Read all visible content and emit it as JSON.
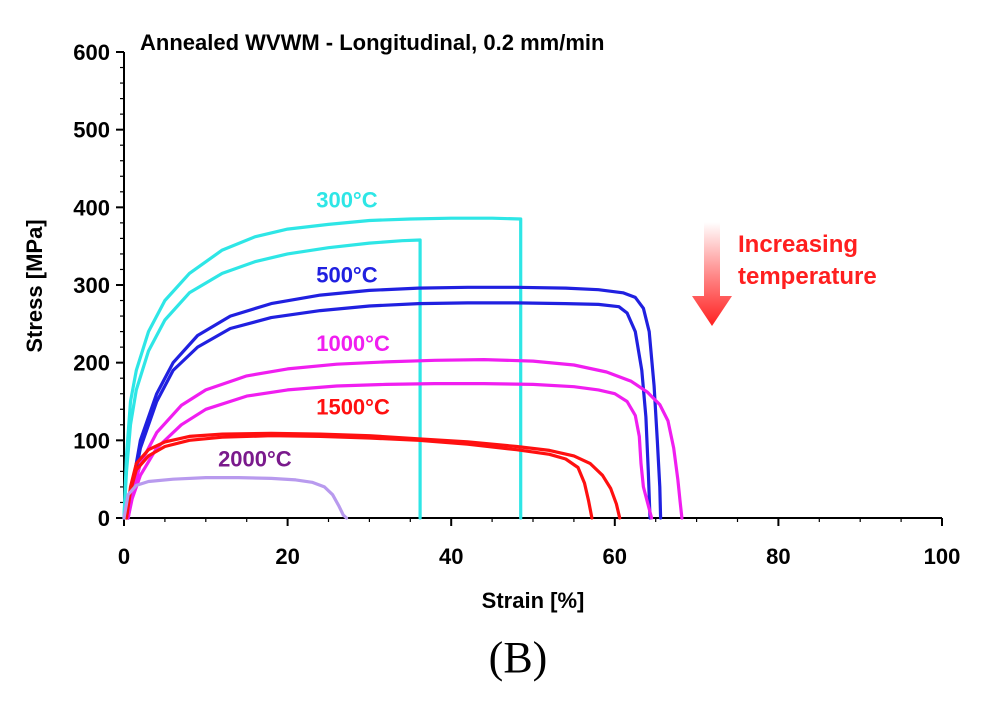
{
  "chart_data": {
    "type": "line",
    "title": "Annealed WVWM - Longitudinal, 0.2 mm/min",
    "xlabel": "Strain [%]",
    "ylabel": "Stress [MPa]",
    "xlim": [
      0,
      100
    ],
    "ylim": [
      0,
      600
    ],
    "xticks": [
      0,
      20,
      40,
      60,
      80,
      100
    ],
    "xtick_labels": [
      "0",
      "20",
      "40",
      "60",
      "80",
      "100"
    ],
    "yticks": [
      0,
      100,
      200,
      300,
      400,
      500,
      600
    ],
    "ytick_labels": [
      "0",
      "100",
      "200",
      "300",
      "400",
      "500",
      "600"
    ],
    "grid": false,
    "annotation": {
      "text_line1": "Increasing",
      "text_line2": "temperature",
      "color": "#ff1f1f"
    },
    "panel_label": "(B)",
    "series": [
      {
        "label_ref": 0,
        "color": "#2ee6e6",
        "points": [
          [
            0,
            0
          ],
          [
            0.3,
            80
          ],
          [
            0.8,
            150
          ],
          [
            1.5,
            190
          ],
          [
            3,
            240
          ],
          [
            5,
            280
          ],
          [
            8,
            315
          ],
          [
            12,
            345
          ],
          [
            16,
            362
          ],
          [
            20,
            372
          ],
          [
            25,
            378
          ],
          [
            30,
            383
          ],
          [
            35,
            385
          ],
          [
            40,
            386
          ],
          [
            45,
            386
          ],
          [
            48.5,
            385
          ],
          [
            48.5,
            0
          ]
        ]
      },
      {
        "label_ref": 0,
        "color": "#2ee6e6",
        "points": [
          [
            0,
            0
          ],
          [
            0.3,
            60
          ],
          [
            0.8,
            120
          ],
          [
            1.5,
            165
          ],
          [
            3,
            215
          ],
          [
            5,
            255
          ],
          [
            8,
            290
          ],
          [
            12,
            315
          ],
          [
            16,
            330
          ],
          [
            20,
            340
          ],
          [
            25,
            348
          ],
          [
            30,
            354
          ],
          [
            34,
            357
          ],
          [
            36.2,
            358
          ],
          [
            36.2,
            0
          ]
        ]
      },
      {
        "label_ref": 1,
        "color": "#2020e0",
        "points": [
          [
            0.5,
            0
          ],
          [
            1,
            40
          ],
          [
            2,
            100
          ],
          [
            4,
            160
          ],
          [
            6,
            200
          ],
          [
            9,
            235
          ],
          [
            13,
            260
          ],
          [
            18,
            276
          ],
          [
            24,
            287
          ],
          [
            30,
            293
          ],
          [
            36,
            296
          ],
          [
            42,
            297
          ],
          [
            48,
            297
          ],
          [
            54,
            296
          ],
          [
            58,
            294
          ],
          [
            61,
            290
          ],
          [
            62.5,
            284
          ],
          [
            63.5,
            270
          ],
          [
            64.2,
            240
          ],
          [
            64.8,
            170
          ],
          [
            65.2,
            100
          ],
          [
            65.5,
            40
          ],
          [
            65.6,
            0
          ]
        ]
      },
      {
        "label_ref": 1,
        "color": "#2020e0",
        "points": [
          [
            0.5,
            0
          ],
          [
            1,
            35
          ],
          [
            2,
            90
          ],
          [
            4,
            150
          ],
          [
            6,
            190
          ],
          [
            9,
            220
          ],
          [
            13,
            244
          ],
          [
            18,
            258
          ],
          [
            24,
            267
          ],
          [
            30,
            273
          ],
          [
            36,
            276
          ],
          [
            42,
            277
          ],
          [
            48,
            277
          ],
          [
            54,
            276
          ],
          [
            58,
            275
          ],
          [
            60.5,
            272
          ],
          [
            61.5,
            264
          ],
          [
            62.5,
            240
          ],
          [
            63.3,
            190
          ],
          [
            63.8,
            130
          ],
          [
            64.1,
            60
          ],
          [
            64.3,
            0
          ]
        ]
      },
      {
        "label_ref": 2,
        "color": "#f01ef0",
        "points": [
          [
            0.5,
            0
          ],
          [
            1,
            30
          ],
          [
            2,
            70
          ],
          [
            4,
            110
          ],
          [
            7,
            145
          ],
          [
            10,
            165
          ],
          [
            15,
            183
          ],
          [
            20,
            192
          ],
          [
            26,
            198
          ],
          [
            32,
            201
          ],
          [
            38,
            203
          ],
          [
            44,
            204
          ],
          [
            50,
            202
          ],
          [
            55,
            197
          ],
          [
            59,
            188
          ],
          [
            62,
            176
          ],
          [
            64,
            162
          ],
          [
            65.5,
            146
          ],
          [
            66.5,
            125
          ],
          [
            67.2,
            90
          ],
          [
            67.7,
            50
          ],
          [
            68,
            20
          ],
          [
            68.2,
            0
          ]
        ]
      },
      {
        "label_ref": 2,
        "color": "#f01ef0",
        "points": [
          [
            0.5,
            0
          ],
          [
            1,
            25
          ],
          [
            2,
            55
          ],
          [
            4,
            90
          ],
          [
            7,
            120
          ],
          [
            10,
            140
          ],
          [
            15,
            157
          ],
          [
            20,
            165
          ],
          [
            26,
            170
          ],
          [
            32,
            172
          ],
          [
            38,
            173
          ],
          [
            44,
            173
          ],
          [
            50,
            172
          ],
          [
            55,
            169
          ],
          [
            58,
            165
          ],
          [
            60,
            160
          ],
          [
            61.5,
            150
          ],
          [
            62.5,
            132
          ],
          [
            63,
            105
          ],
          [
            63.2,
            70
          ],
          [
            63.5,
            40
          ],
          [
            64,
            20
          ],
          [
            64.5,
            0
          ]
        ]
      },
      {
        "label_ref": 3,
        "color": "#ff1010",
        "points": [
          [
            0.3,
            0
          ],
          [
            0.8,
            40
          ],
          [
            1.5,
            70
          ],
          [
            3,
            88
          ],
          [
            5,
            98
          ],
          [
            8,
            105
          ],
          [
            12,
            108
          ],
          [
            18,
            109
          ],
          [
            24,
            108
          ],
          [
            30,
            106
          ],
          [
            36,
            102
          ],
          [
            42,
            98
          ],
          [
            48,
            92
          ],
          [
            52,
            87
          ],
          [
            55,
            80
          ],
          [
            57,
            70
          ],
          [
            58.5,
            55
          ],
          [
            59.5,
            38
          ],
          [
            60.2,
            18
          ],
          [
            60.6,
            0
          ]
        ]
      },
      {
        "label_ref": 3,
        "color": "#ff1010",
        "points": [
          [
            0.3,
            0
          ],
          [
            0.8,
            35
          ],
          [
            1.5,
            62
          ],
          [
            3,
            80
          ],
          [
            5,
            92
          ],
          [
            8,
            100
          ],
          [
            12,
            104
          ],
          [
            18,
            106
          ],
          [
            24,
            105
          ],
          [
            30,
            103
          ],
          [
            36,
            100
          ],
          [
            42,
            95
          ],
          [
            48,
            88
          ],
          [
            52,
            82
          ],
          [
            54,
            76
          ],
          [
            55.5,
            65
          ],
          [
            56.3,
            45
          ],
          [
            56.8,
            22
          ],
          [
            57.2,
            0
          ]
        ]
      },
      {
        "label_ref": 4,
        "color": "#b89aee",
        "points": [
          [
            0,
            0
          ],
          [
            0.5,
            30
          ],
          [
            1.5,
            42
          ],
          [
            3,
            47
          ],
          [
            6,
            50
          ],
          [
            10,
            52
          ],
          [
            14,
            52
          ],
          [
            18,
            51
          ],
          [
            21,
            49
          ],
          [
            23,
            46
          ],
          [
            24.5,
            40
          ],
          [
            25.5,
            30
          ],
          [
            26.3,
            15
          ],
          [
            26.8,
            4
          ],
          [
            27.2,
            0
          ]
        ]
      }
    ],
    "labels": [
      {
        "text": "300°C",
        "color": "#2ee6e6",
        "x": 23.5,
        "y": 400
      },
      {
        "text": "500°C",
        "color": "#2020e0",
        "x": 23.5,
        "y": 303
      },
      {
        "text": "1000°C",
        "color": "#f01ef0",
        "x": 23.5,
        "y": 215
      },
      {
        "text": "1500°C",
        "color": "#ff1010",
        "x": 23.5,
        "y": 133
      },
      {
        "text": "2000°C",
        "color": "#7a1a8c",
        "x": 11.5,
        "y": 66
      }
    ]
  }
}
